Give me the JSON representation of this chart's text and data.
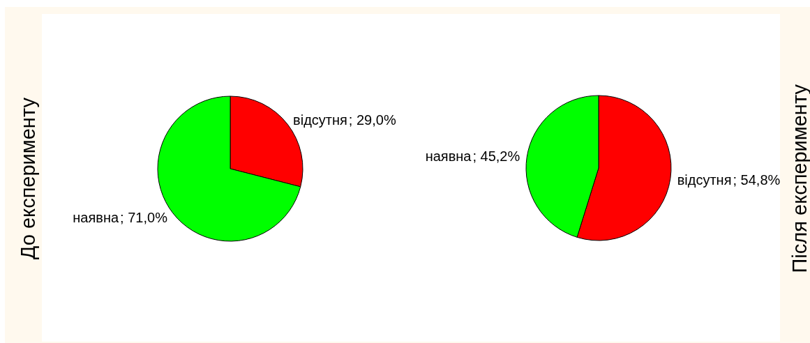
{
  "chart_data": [
    {
      "type": "pie",
      "title": "До експерименту",
      "categories": [
        "відсутня",
        "наявна"
      ],
      "values": [
        29.0,
        71.0
      ],
      "colors": [
        "#ff0000",
        "#00ff00"
      ],
      "value_labels": [
        "; 29,0%",
        "; 71,0%"
      ]
    },
    {
      "type": "pie",
      "title": "Після експерименту",
      "categories": [
        "відсутня",
        "наявна"
      ],
      "values": [
        54.8,
        45.2
      ],
      "colors": [
        "#ff0000",
        "#00ff00"
      ],
      "value_labels": [
        "; 54,8%",
        "; 45,2%"
      ]
    }
  ]
}
